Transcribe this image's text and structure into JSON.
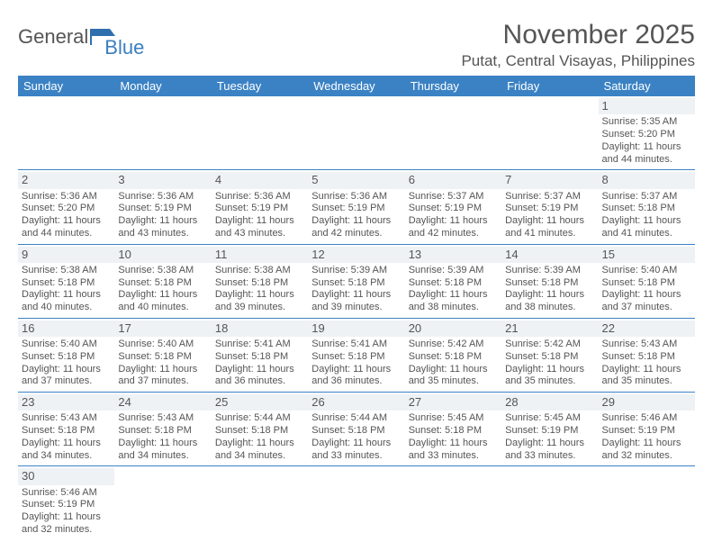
{
  "brand": {
    "part1": "General",
    "part2": "Blue"
  },
  "title": "November 2025",
  "location": "Putat, Central Visayas, Philippines",
  "header_bg": "#3b82c4",
  "daynum_bg": "#eef2f5",
  "border_color": "#3b82c4",
  "text_color": "#555555",
  "flag_color": "#2f6fae",
  "days": [
    "Sunday",
    "Monday",
    "Tuesday",
    "Wednesday",
    "Thursday",
    "Friday",
    "Saturday"
  ],
  "weeks": [
    [
      null,
      null,
      null,
      null,
      null,
      null,
      {
        "n": "1",
        "sr": "5:35 AM",
        "ss": "5:20 PM",
        "dl": "11 hours and 44 minutes."
      }
    ],
    [
      {
        "n": "2",
        "sr": "5:36 AM",
        "ss": "5:20 PM",
        "dl": "11 hours and 44 minutes."
      },
      {
        "n": "3",
        "sr": "5:36 AM",
        "ss": "5:19 PM",
        "dl": "11 hours and 43 minutes."
      },
      {
        "n": "4",
        "sr": "5:36 AM",
        "ss": "5:19 PM",
        "dl": "11 hours and 43 minutes."
      },
      {
        "n": "5",
        "sr": "5:36 AM",
        "ss": "5:19 PM",
        "dl": "11 hours and 42 minutes."
      },
      {
        "n": "6",
        "sr": "5:37 AM",
        "ss": "5:19 PM",
        "dl": "11 hours and 42 minutes."
      },
      {
        "n": "7",
        "sr": "5:37 AM",
        "ss": "5:19 PM",
        "dl": "11 hours and 41 minutes."
      },
      {
        "n": "8",
        "sr": "5:37 AM",
        "ss": "5:18 PM",
        "dl": "11 hours and 41 minutes."
      }
    ],
    [
      {
        "n": "9",
        "sr": "5:38 AM",
        "ss": "5:18 PM",
        "dl": "11 hours and 40 minutes."
      },
      {
        "n": "10",
        "sr": "5:38 AM",
        "ss": "5:18 PM",
        "dl": "11 hours and 40 minutes."
      },
      {
        "n": "11",
        "sr": "5:38 AM",
        "ss": "5:18 PM",
        "dl": "11 hours and 39 minutes."
      },
      {
        "n": "12",
        "sr": "5:39 AM",
        "ss": "5:18 PM",
        "dl": "11 hours and 39 minutes."
      },
      {
        "n": "13",
        "sr": "5:39 AM",
        "ss": "5:18 PM",
        "dl": "11 hours and 38 minutes."
      },
      {
        "n": "14",
        "sr": "5:39 AM",
        "ss": "5:18 PM",
        "dl": "11 hours and 38 minutes."
      },
      {
        "n": "15",
        "sr": "5:40 AM",
        "ss": "5:18 PM",
        "dl": "11 hours and 37 minutes."
      }
    ],
    [
      {
        "n": "16",
        "sr": "5:40 AM",
        "ss": "5:18 PM",
        "dl": "11 hours and 37 minutes."
      },
      {
        "n": "17",
        "sr": "5:40 AM",
        "ss": "5:18 PM",
        "dl": "11 hours and 37 minutes."
      },
      {
        "n": "18",
        "sr": "5:41 AM",
        "ss": "5:18 PM",
        "dl": "11 hours and 36 minutes."
      },
      {
        "n": "19",
        "sr": "5:41 AM",
        "ss": "5:18 PM",
        "dl": "11 hours and 36 minutes."
      },
      {
        "n": "20",
        "sr": "5:42 AM",
        "ss": "5:18 PM",
        "dl": "11 hours and 35 minutes."
      },
      {
        "n": "21",
        "sr": "5:42 AM",
        "ss": "5:18 PM",
        "dl": "11 hours and 35 minutes."
      },
      {
        "n": "22",
        "sr": "5:43 AM",
        "ss": "5:18 PM",
        "dl": "11 hours and 35 minutes."
      }
    ],
    [
      {
        "n": "23",
        "sr": "5:43 AM",
        "ss": "5:18 PM",
        "dl": "11 hours and 34 minutes."
      },
      {
        "n": "24",
        "sr": "5:43 AM",
        "ss": "5:18 PM",
        "dl": "11 hours and 34 minutes."
      },
      {
        "n": "25",
        "sr": "5:44 AM",
        "ss": "5:18 PM",
        "dl": "11 hours and 34 minutes."
      },
      {
        "n": "26",
        "sr": "5:44 AM",
        "ss": "5:18 PM",
        "dl": "11 hours and 33 minutes."
      },
      {
        "n": "27",
        "sr": "5:45 AM",
        "ss": "5:18 PM",
        "dl": "11 hours and 33 minutes."
      },
      {
        "n": "28",
        "sr": "5:45 AM",
        "ss": "5:19 PM",
        "dl": "11 hours and 33 minutes."
      },
      {
        "n": "29",
        "sr": "5:46 AM",
        "ss": "5:19 PM",
        "dl": "11 hours and 32 minutes."
      }
    ],
    [
      {
        "n": "30",
        "sr": "5:46 AM",
        "ss": "5:19 PM",
        "dl": "11 hours and 32 minutes."
      },
      null,
      null,
      null,
      null,
      null,
      null
    ]
  ],
  "labels": {
    "sunrise": "Sunrise:",
    "sunset": "Sunset:",
    "daylight": "Daylight:"
  }
}
